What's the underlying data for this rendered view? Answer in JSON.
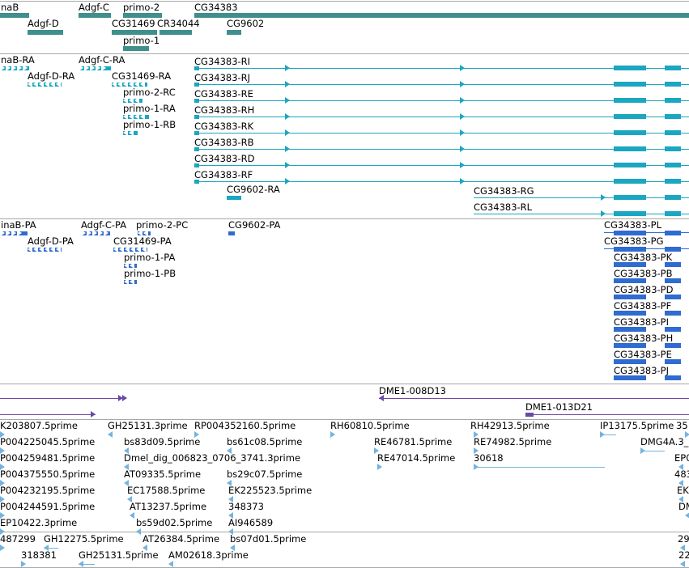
{
  "colors": {
    "gene": "#3f8f8c",
    "rna": "#1ba6c2",
    "protein": "#2f6bd0",
    "clone": "#6a4aa6",
    "est": "#74b3df",
    "separator": "#a8a8a8"
  },
  "tracks": {
    "genes": {
      "items": [
        {
          "label": "naB"
        },
        {
          "label": "Adgf-C"
        },
        {
          "label": "primo-2"
        },
        {
          "label": "CG34383"
        },
        {
          "label": "Adgf-D"
        },
        {
          "label": "CG31469"
        },
        {
          "label": "CR34044"
        },
        {
          "label": "CG9602"
        },
        {
          "label": "primo-1"
        }
      ]
    },
    "transcripts": {
      "items": [
        {
          "label": "naB-RA"
        },
        {
          "label": "Adgf-C-RA"
        },
        {
          "label": "Adgf-D-RA"
        },
        {
          "label": "CG31469-RA"
        },
        {
          "label": "primo-2-RC"
        },
        {
          "label": "primo-1-RA"
        },
        {
          "label": "primo-1-RB"
        },
        {
          "label": "CG34383-RI"
        },
        {
          "label": "CG34383-RJ"
        },
        {
          "label": "CG34383-RE"
        },
        {
          "label": "CG34383-RH"
        },
        {
          "label": "CG34383-RK"
        },
        {
          "label": "CG34383-RB"
        },
        {
          "label": "CG34383-RD"
        },
        {
          "label": "CG34383-RF"
        },
        {
          "label": "CG9602-RA"
        },
        {
          "label": "CG34383-RG"
        },
        {
          "label": "CG34383-RL"
        }
      ]
    },
    "proteins": {
      "items": [
        {
          "label": "inaB-PA"
        },
        {
          "label": "Adgf-C-PA"
        },
        {
          "label": "primo-2-PC"
        },
        {
          "label": "CG9602-PA"
        },
        {
          "label": "CG34383-PL"
        },
        {
          "label": "Adgf-D-PA"
        },
        {
          "label": "CG31469-PA"
        },
        {
          "label": "CG34383-PG"
        },
        {
          "label": "primo-1-PA"
        },
        {
          "label": "CG34383-PK"
        },
        {
          "label": "primo-1-PB"
        },
        {
          "label": "CG34383-PB"
        },
        {
          "label": "CG34383-PD"
        },
        {
          "label": "CG34383-PF"
        },
        {
          "label": "CG34383-PI"
        },
        {
          "label": "CG34383-PH"
        },
        {
          "label": "CG34383-PE"
        },
        {
          "label": "CG34383-PJ"
        }
      ]
    },
    "clones": {
      "items": [
        {
          "label": "DME1-008D13"
        },
        {
          "label": "DME1-013D21"
        }
      ]
    },
    "ests": {
      "items": [
        {
          "label": "K203807.5prime"
        },
        {
          "label": "GH25131.3prime"
        },
        {
          "label": "RP004352160.5prime"
        },
        {
          "label": "RH60810.5prime"
        },
        {
          "label": "RH42913.5prime"
        },
        {
          "label": "IP13175.5prime"
        },
        {
          "label": "35"
        },
        {
          "label": "P004225045.5prime"
        },
        {
          "label": "bs83d09.5prime"
        },
        {
          "label": "bs61c08.5prime"
        },
        {
          "label": "RE46781.5prime"
        },
        {
          "label": "RE74982.5prime"
        },
        {
          "label": "DMG4A.3_"
        },
        {
          "label": "P004259481.5prime"
        },
        {
          "label": "Dmel_dig_006823_0706_3741.3prime"
        },
        {
          "label": "RE47014.5prime"
        },
        {
          "label": "30618"
        },
        {
          "label": "EP0"
        },
        {
          "label": "P004375550.5prime"
        },
        {
          "label": "AT09335.5prime"
        },
        {
          "label": "bs29c07.5prime"
        },
        {
          "label": "483"
        },
        {
          "label": "P004232195.5prime"
        },
        {
          "label": "EC17588.5prime"
        },
        {
          "label": "EK225523.5prime"
        },
        {
          "label": "EK"
        },
        {
          "label": "P004244591.5prime"
        },
        {
          "label": "AT13237.5prime"
        },
        {
          "label": "348373"
        },
        {
          "label": "DM"
        },
        {
          "label": "EP10422.3prime"
        },
        {
          "label": "bs59d02.5prime"
        },
        {
          "label": "AI946589"
        },
        {
          "label": "487299"
        },
        {
          "label": "GH12275.5prime"
        },
        {
          "label": "AT26384.5prime"
        },
        {
          "label": "bs07d01.5prime"
        },
        {
          "label": "29"
        },
        {
          "label": "318381"
        },
        {
          "label": "GH25131.5prime"
        },
        {
          "label": "AM02618.3prime"
        },
        {
          "label": "22"
        }
      ]
    }
  }
}
